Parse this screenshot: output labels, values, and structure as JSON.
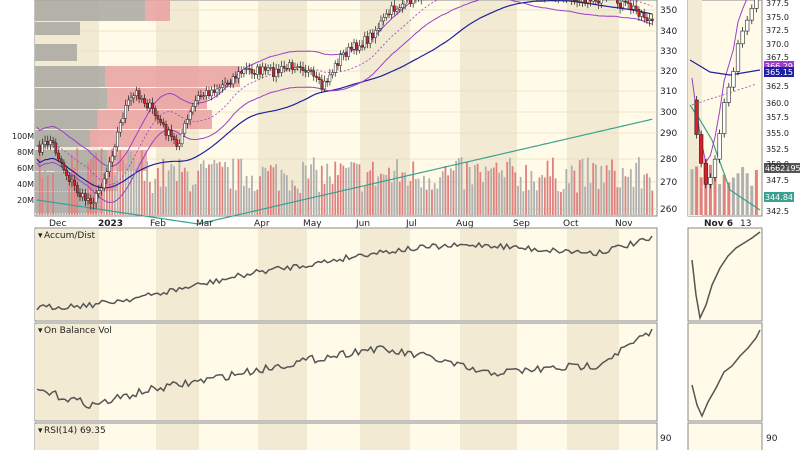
{
  "colors": {
    "background": "#fffbe8",
    "shade_band": "#f3ead3",
    "volume_profile": "#a8a8a0",
    "volume_profile_red": "#e8a0a0",
    "candle_up": "#ffffff",
    "candle_down": "#d8202a",
    "sma_short": "#2020a0",
    "sma_long": "#3aa090",
    "bollinger": "#9a40c8",
    "indicator_line": "#555555",
    "volume_bar": "#b0b0b0",
    "volume_bar_red": "#e08080"
  },
  "main_panel": {
    "x_labels": [
      "Dec",
      "2023",
      "Feb",
      "Mar",
      "Apr",
      "May",
      "Jun",
      "Jul",
      "Aug",
      "Sep",
      "Oct",
      "Nov"
    ],
    "y_labels": [
      "350",
      "340",
      "330",
      "320",
      "310",
      "300",
      "290",
      "280",
      "270",
      "260"
    ],
    "volume_labels": [
      "100M",
      "80M",
      "60M",
      "40M",
      "20M"
    ]
  },
  "side_panel": {
    "x_labels": [
      "Nov 6",
      "13"
    ],
    "y_labels": [
      "377.5",
      "375.0",
      "372.5",
      "370.0",
      "367.5",
      "362.5",
      "360.0",
      "357.5",
      "355.0",
      "352.5",
      "350.0",
      "347.5",
      "342.5"
    ],
    "price_tags": [
      "366.29",
      "365.15",
      "4662195",
      "344.84"
    ]
  },
  "indicators": {
    "accum_dist": "Accum/Dist",
    "obv": "On Balance Vol",
    "rsi": "RSI(14) 69.35",
    "rsi_level": "90"
  },
  "chart_data": [
    {
      "type": "candlestick",
      "title": "",
      "x": [
        "Dec",
        "2023",
        "Feb",
        "Mar",
        "Apr",
        "May",
        "Jun",
        "Jul",
        "Aug",
        "Sep",
        "Oct",
        "Nov"
      ],
      "series": [
        {
          "name": "",
          "values": [
            280,
            268,
            293,
            287,
            305,
            318,
            345,
            372,
            370,
            362,
            350,
            352
          ]
        }
      ],
      "ylim": [
        255,
        370
      ]
    },
    {
      "type": "line",
      "title": "Accum/Dist",
      "series": [
        {
          "name": "",
          "values": [
            0.1,
            0.14,
            0.25,
            0.4,
            0.55,
            0.65,
            0.78,
            0.85,
            0.88,
            0.82,
            0.78,
            0.95
          ]
        }
      ]
    },
    {
      "type": "line",
      "title": "On Balance Vol",
      "series": [
        {
          "name": "",
          "values": [
            0.3,
            0.12,
            0.3,
            0.42,
            0.55,
            0.68,
            0.8,
            0.7,
            0.5,
            0.55,
            0.6,
            1.0
          ]
        }
      ]
    }
  ]
}
